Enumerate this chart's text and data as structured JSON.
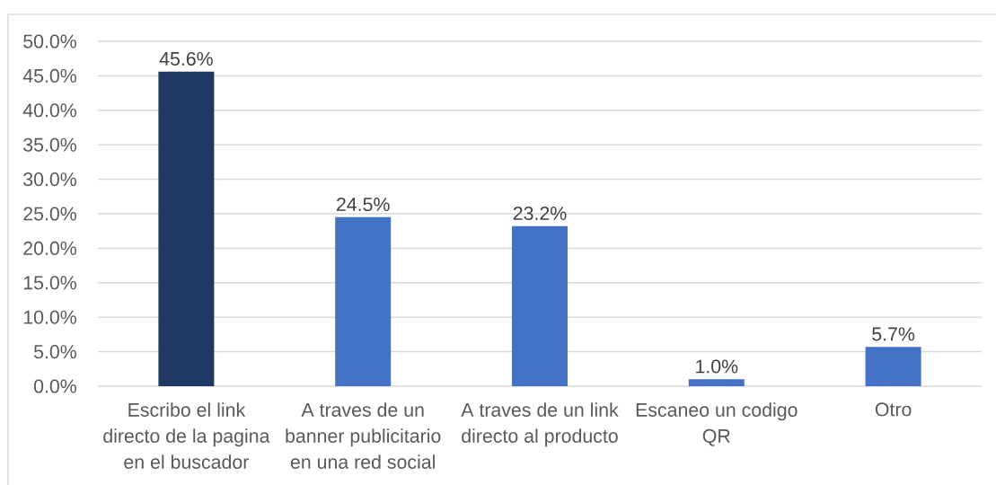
{
  "chart_data": {
    "type": "bar",
    "categories": [
      "Escribo el link directo de la pagina en el buscador",
      "A traves de un banner publicitario en una red social",
      "A traves de un link directo al producto",
      "Escaneo un codigo QR",
      "Otro"
    ],
    "values": [
      45.6,
      24.5,
      23.2,
      1.0,
      5.7
    ],
    "colors": [
      "#203864",
      "#4472c4",
      "#4472c4",
      "#4472c4",
      "#4472c4"
    ],
    "value_labels": [
      "45.6%",
      "24.5%",
      "23.2%",
      "1.0%",
      "5.7%"
    ],
    "ylim": [
      0,
      50
    ],
    "yticks": [
      {
        "value": 0,
        "label": "0.0%"
      },
      {
        "value": 5,
        "label": "5.0%"
      },
      {
        "value": 10,
        "label": "10.0%"
      },
      {
        "value": 15,
        "label": "15.0%"
      },
      {
        "value": 20,
        "label": "20.0%"
      },
      {
        "value": 25,
        "label": "25.0%"
      },
      {
        "value": 30,
        "label": "30.0%"
      },
      {
        "value": 35,
        "label": "35.0%"
      },
      {
        "value": 40,
        "label": "40.0%"
      },
      {
        "value": 45,
        "label": "45.0%"
      },
      {
        "value": 50,
        "label": "50.0%"
      }
    ],
    "grid": "y"
  }
}
